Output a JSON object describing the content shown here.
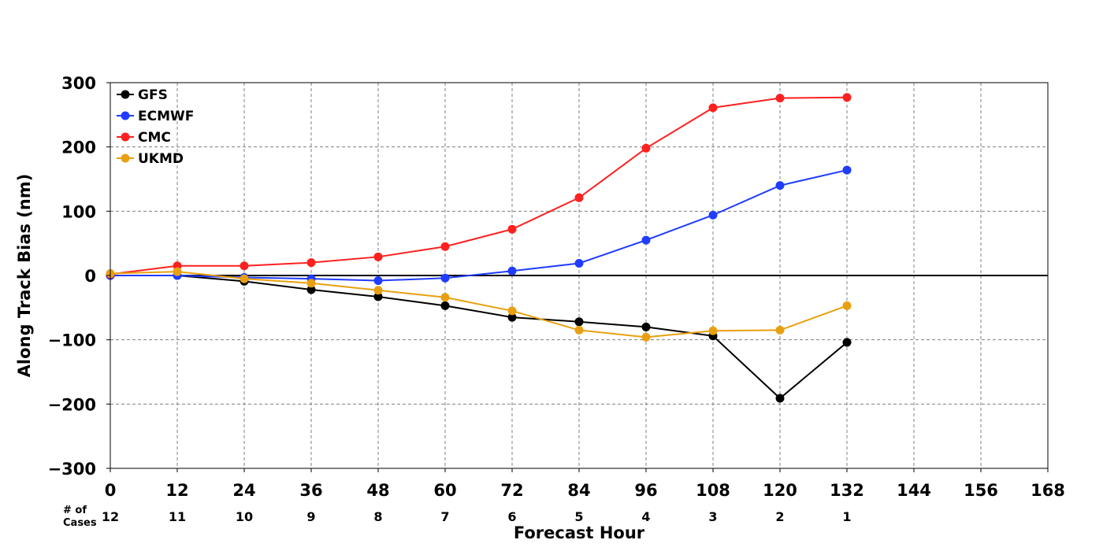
{
  "chart_data": {
    "type": "line",
    "xlabel": "Forecast Hour",
    "ylabel": "Along Track Bias (nm)",
    "xlim": [
      0,
      168
    ],
    "ylim": [
      -300,
      300
    ],
    "xticks": [
      0,
      12,
      24,
      36,
      48,
      60,
      72,
      84,
      96,
      108,
      120,
      132,
      144,
      156,
      168
    ],
    "yticks": [
      -300,
      -200,
      -100,
      0,
      100,
      200,
      300
    ],
    "ytick_labels": [
      "−300",
      "−200",
      "−100",
      "0",
      "100",
      "200",
      "300"
    ],
    "grid": true,
    "legend_position": "top-left",
    "cases_label_line1": "# of",
    "cases_label_line2": "Cases",
    "cases_x": [
      0,
      12,
      24,
      36,
      48,
      60,
      72,
      84,
      96,
      108,
      120,
      132
    ],
    "cases": [
      12,
      11,
      10,
      9,
      8,
      7,
      6,
      5,
      4,
      3,
      2,
      1
    ],
    "series": [
      {
        "name": "GFS",
        "color": "#000000",
        "x": [
          0,
          12,
          24,
          36,
          48,
          60,
          72,
          84,
          96,
          108,
          120,
          132
        ],
        "y": [
          0,
          0,
          -9,
          -22,
          -33,
          -47,
          -65,
          -72,
          -80,
          -94,
          -191,
          -104
        ]
      },
      {
        "name": "ECMWF",
        "color": "#1f3cff",
        "x": [
          0,
          12,
          24,
          36,
          48,
          60,
          72,
          84,
          96,
          108,
          120,
          132
        ],
        "y": [
          0,
          0,
          -3,
          -5,
          -8,
          -4,
          7,
          19,
          55,
          94,
          140,
          164
        ]
      },
      {
        "name": "CMC",
        "color": "#ff2020",
        "x": [
          0,
          12,
          24,
          36,
          48,
          60,
          72,
          84,
          96,
          108,
          120,
          132
        ],
        "y": [
          2,
          15,
          15,
          20,
          29,
          45,
          72,
          121,
          198,
          261,
          276,
          277
        ]
      },
      {
        "name": "UKMD",
        "color": "#e8a010",
        "x": [
          0,
          12,
          24,
          36,
          48,
          60,
          72,
          84,
          96,
          108,
          120,
          132
        ],
        "y": [
          3,
          6,
          -5,
          -12,
          -23,
          -34,
          -55,
          -85,
          -96,
          -86,
          -85,
          -47
        ]
      }
    ]
  }
}
